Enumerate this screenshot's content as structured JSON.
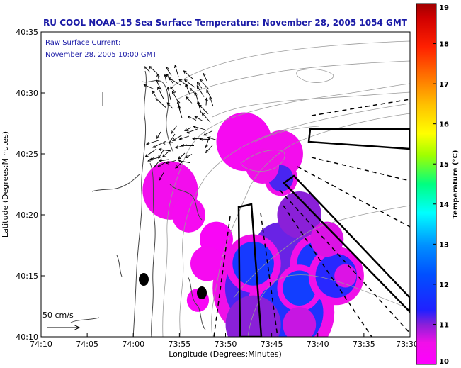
{
  "chart_data": {
    "type": "heatmap",
    "title": "RU COOL  NOAA–15  Sea Surface Temperature:  November 28, 2005 1054 GMT",
    "xlabel": "Longitude (Degrees:Minutes)",
    "ylabel": "Latitude (Degrees:Minutes)",
    "x_ticks": [
      "74:10",
      "74:05",
      "74:00",
      "73:55",
      "73:50",
      "73:45",
      "73:40",
      "73:35",
      "73:30"
    ],
    "y_ticks": [
      "40:10",
      "40:15",
      "40:20",
      "40:25",
      "40:30",
      "40:35"
    ],
    "xlim": [
      -74.1667,
      -73.5
    ],
    "ylim": [
      40.1667,
      40.5833
    ],
    "legend": {
      "line1": "Raw Surface Current:",
      "line2": "November 28, 2005 10:00 GMT"
    },
    "scale_label": "50 cm/s",
    "colorbar": {
      "label": "Temperature (°C)",
      "min": 10,
      "max": 19,
      "ticks": [
        "10",
        "11",
        "12",
        "13",
        "14",
        "15",
        "16",
        "17",
        "18",
        "19"
      ]
    },
    "sst_patches": [
      {
        "lon": -73.7667,
        "lat": 40.2333,
        "temp": 11.2,
        "r": 0.09
      },
      {
        "lon": -73.7167,
        "lat": 40.2,
        "temp": 11.5,
        "r": 0.08
      },
      {
        "lon": -73.7333,
        "lat": 40.2833,
        "temp": 11.1,
        "r": 0.05
      },
      {
        "lon": -73.7,
        "lat": 40.3333,
        "temp": 11.0,
        "r": 0.04
      },
      {
        "lon": -73.6667,
        "lat": 40.2667,
        "temp": 11.6,
        "r": 0.05
      },
      {
        "lon": -73.7833,
        "lat": 40.2667,
        "temp": 11.7,
        "r": 0.05
      },
      {
        "lon": -73.7,
        "lat": 40.2333,
        "temp": 11.8,
        "r": 0.04
      },
      {
        "lon": -73.6333,
        "lat": 40.25,
        "temp": 11.3,
        "r": 0.05
      },
      {
        "lon": -73.7833,
        "lat": 40.1833,
        "temp": 11.0,
        "r": 0.05
      },
      {
        "lon": -73.9333,
        "lat": 40.3667,
        "temp": 10.4,
        "r": 0.05
      },
      {
        "lon": -73.9,
        "lat": 40.3333,
        "temp": 10.3,
        "r": 0.03
      },
      {
        "lon": -73.85,
        "lat": 40.3,
        "temp": 10.2,
        "r": 0.03
      },
      {
        "lon": -73.8667,
        "lat": 40.2667,
        "temp": 10.3,
        "r": 0.03
      },
      {
        "lon": -73.8,
        "lat": 40.4333,
        "temp": 10.3,
        "r": 0.05
      },
      {
        "lon": -73.7333,
        "lat": 40.4167,
        "temp": 10.4,
        "r": 0.04
      },
      {
        "lon": -73.7333,
        "lat": 40.3833,
        "temp": 11.2,
        "r": 0.03
      },
      {
        "lon": -73.7667,
        "lat": 40.4,
        "temp": 10.5,
        "r": 0.03
      },
      {
        "lon": -73.65,
        "lat": 40.3,
        "temp": 10.6,
        "r": 0.03
      },
      {
        "lon": -73.6167,
        "lat": 40.25,
        "temp": 10.6,
        "r": 0.02
      },
      {
        "lon": -73.7,
        "lat": 40.1833,
        "temp": 10.7,
        "r": 0.03
      },
      {
        "lon": -73.8833,
        "lat": 40.2167,
        "temp": 10.2,
        "r": 0.02
      }
    ]
  }
}
